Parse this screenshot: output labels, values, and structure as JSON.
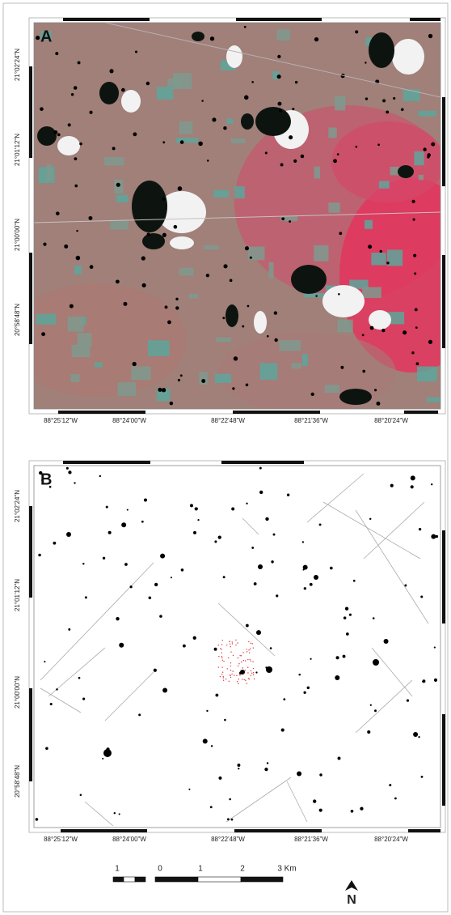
{
  "panels": [
    {
      "label": "A",
      "left_ticks": [
        "21°02'24\"N",
        "21°01'12\"N",
        "21°00'00\"N",
        "20°58'48\"N"
      ],
      "bottom_ticks": [
        "88°25'12\"W",
        "88°24'00\"W",
        "88°22'48\"W",
        "88°21'36\"W",
        "88°20'24\"W"
      ]
    },
    {
      "label": "B",
      "left_ticks": [
        "21°02'24\"N",
        "21°01'12\"N",
        "21°00'00\"N",
        "20°58'48\"N"
      ],
      "bottom_ticks": [
        "88°25'12\"W",
        "88°24'00\"W",
        "88°22'48\"W",
        "88°21'36\"W",
        "88°20'24\"W"
      ]
    }
  ],
  "scale_bar": {
    "labels": [
      "1",
      "0",
      "1",
      "2",
      "3 Km"
    ]
  },
  "north_arrow": "N"
}
